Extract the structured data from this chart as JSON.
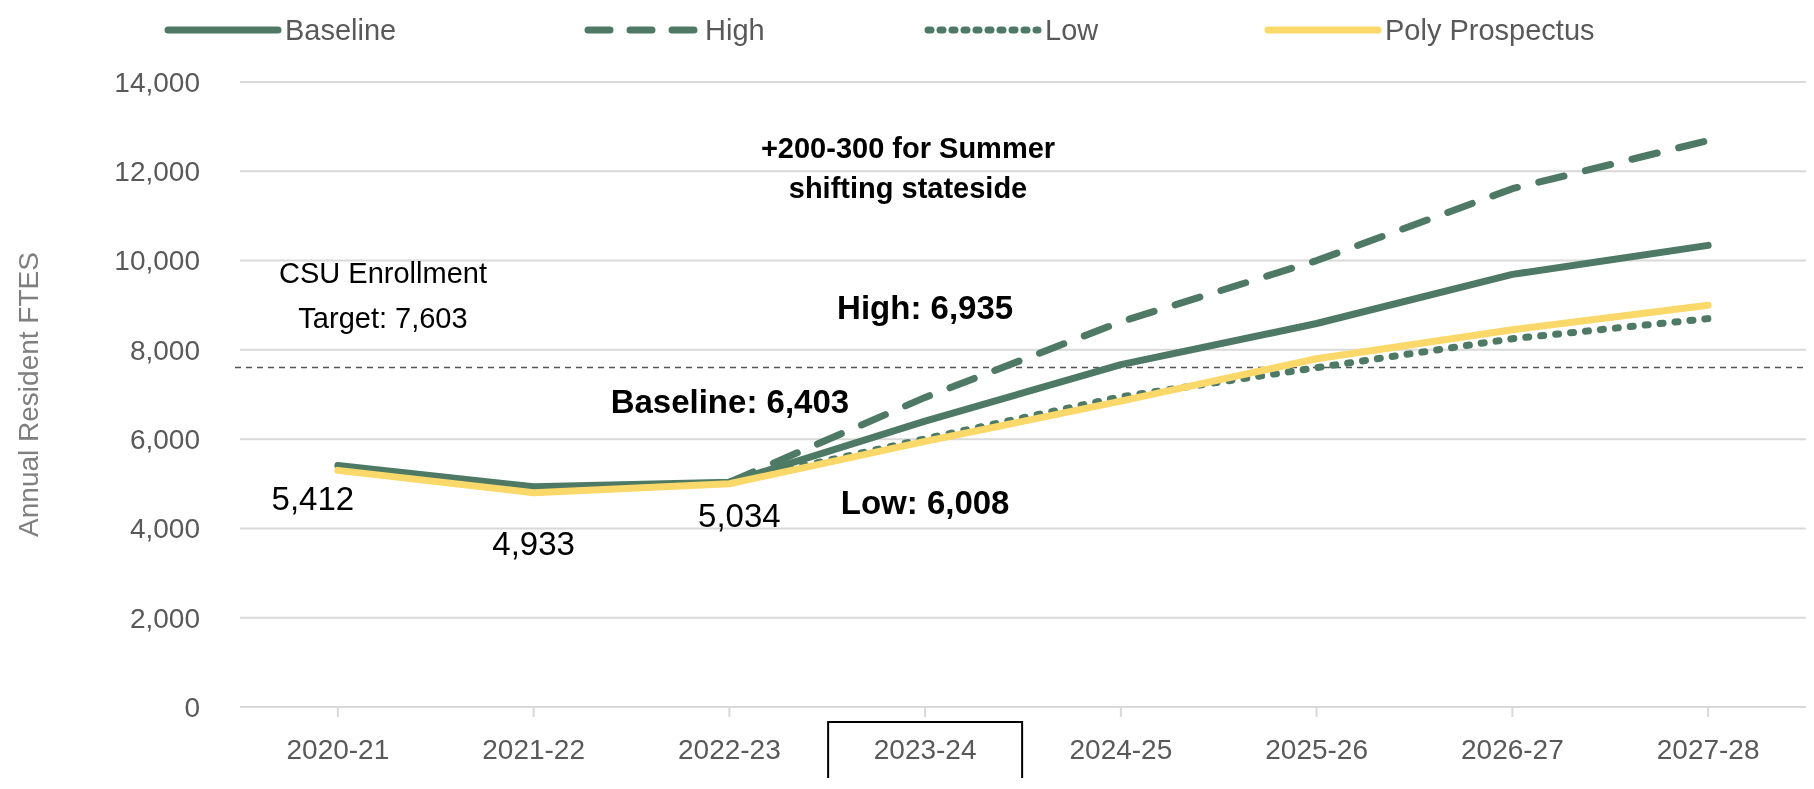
{
  "chart_data": {
    "type": "line",
    "ylabel": "Annual Resident FTES",
    "categories": [
      "2020-21",
      "2021-22",
      "2022-23",
      "2023-24",
      "2024-25",
      "2025-26",
      "2026-27",
      "2027-28"
    ],
    "series": [
      {
        "name": "Baseline",
        "color": "#4e7a65",
        "line_style": "solid",
        "values": [
          5412,
          4933,
          5034,
          6403,
          7670,
          8590,
          9690,
          10340
        ],
        "value_labels": [
          "5,412",
          "4,933",
          "5,034",
          null,
          null,
          null,
          null,
          null
        ]
      },
      {
        "name": "High",
        "color": "#4e7a65",
        "line_style": "dashed",
        "values": [
          null,
          null,
          5034,
          6935,
          8630,
          10000,
          11610,
          12690
        ]
      },
      {
        "name": "Low",
        "color": "#4e7a65",
        "line_style": "dotted",
        "values": [
          null,
          null,
          5034,
          6008,
          6950,
          7600,
          8250,
          8700
        ]
      },
      {
        "name": "Poly Prospectus",
        "color": "#fad869",
        "line_style": "solid",
        "values": [
          5300,
          4800,
          5000,
          5950,
          6850,
          7800,
          8450,
          9000
        ]
      }
    ],
    "ylim": [
      0,
      14000
    ],
    "yticks": [
      {
        "value": 0,
        "label": "0"
      },
      {
        "value": 2000,
        "label": "2,000"
      },
      {
        "value": 4000,
        "label": "4,000"
      },
      {
        "value": 6000,
        "label": "6,000"
      },
      {
        "value": 8000,
        "label": "8,000"
      },
      {
        "value": 10000,
        "label": "10,000"
      },
      {
        "value": 12000,
        "label": "12,000"
      },
      {
        "value": 14000,
        "label": "14,000"
      }
    ],
    "grid": "y",
    "legend": "top",
    "marker": "none",
    "ref_lines": [
      {
        "axis": "y",
        "value": 7603,
        "label": "CSU Enrollment Target: 7,603",
        "color": "#555555",
        "line_style": "dashed"
      }
    ],
    "annotations": [
      "+200-300 for Summer shifting stateside",
      {
        "text": "Baseline: 6,403",
        "x": "2023-24",
        "y": 6403
      },
      {
        "text": "High: 6,935",
        "x": "2023-24",
        "y": 6935
      },
      {
        "text": "Low: 6,008",
        "x": "2023-24",
        "y": 6008
      }
    ]
  }
}
